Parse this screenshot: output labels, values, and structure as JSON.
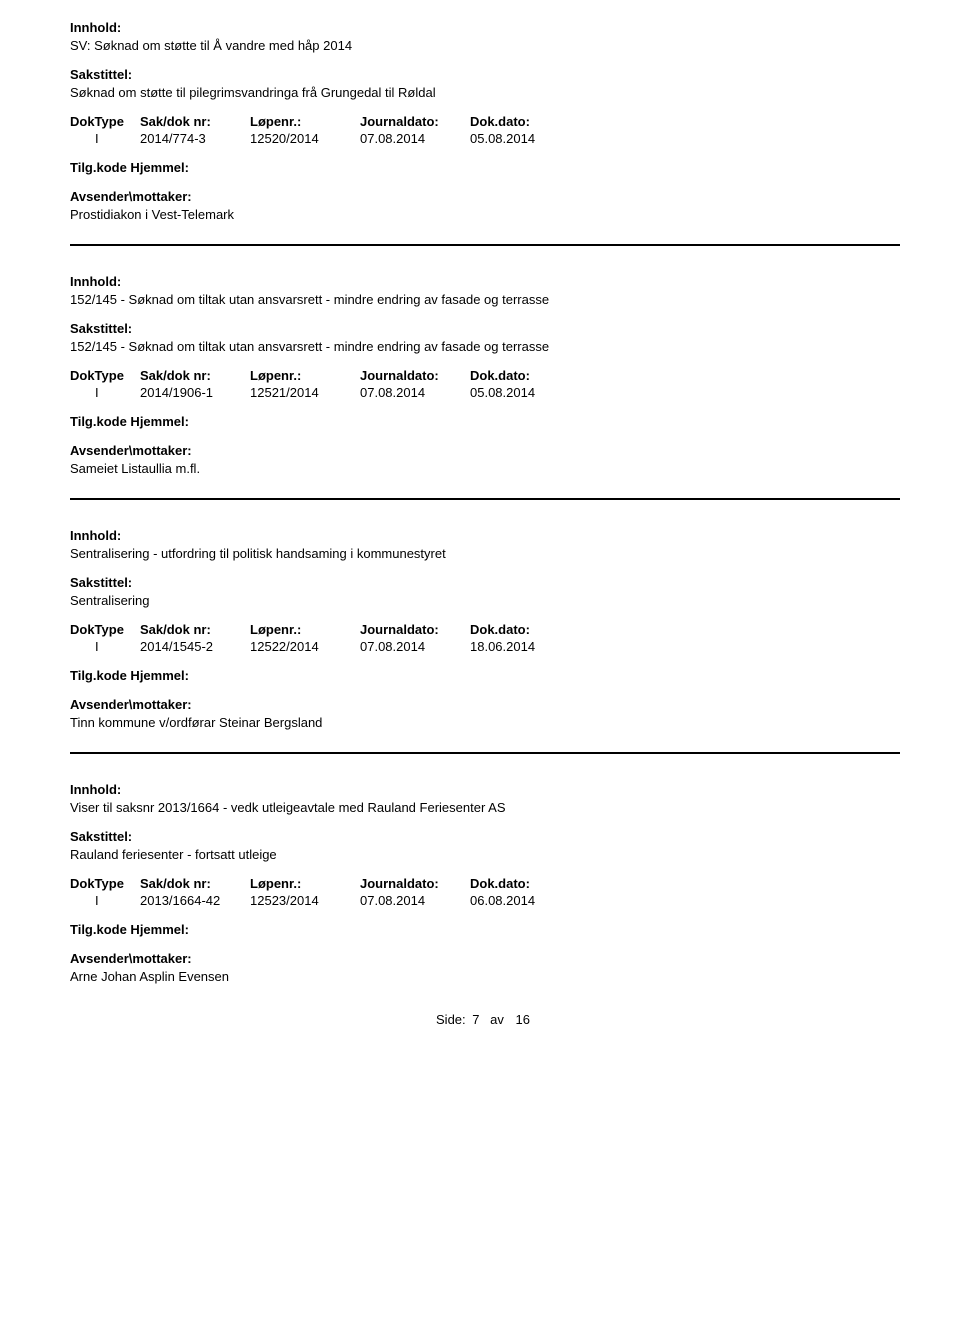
{
  "labels": {
    "innhold": "Innhold:",
    "sakstittel": "Sakstittel:",
    "doktype": "DokType",
    "saknr": "Sak/dok nr:",
    "lopenr": "Løpenr.:",
    "journaldato": "Journaldato:",
    "dokdato": "Dok.dato:",
    "tilgkode": "Tilg.kode Hjemmel:",
    "avsender": "Avsender\\mottaker:"
  },
  "records": [
    {
      "innhold": "SV: Søknad om støtte til Å vandre med håp 2014",
      "sakstittel": "Søknad om støtte til pilegrimsvandringa frå Grungedal til Røldal",
      "doktype": "I",
      "saknr": "2014/774-3",
      "lopenr": "12520/2014",
      "journaldato": "07.08.2014",
      "dokdato": "05.08.2014",
      "avsender": "Prostidiakon i Vest-Telemark"
    },
    {
      "innhold": "152/145 - Søknad om tiltak utan ansvarsrett - mindre endring av fasade og terrasse",
      "sakstittel": "152/145 - Søknad om tiltak utan ansvarsrett - mindre endring av fasade og terrasse",
      "doktype": "I",
      "saknr": "2014/1906-1",
      "lopenr": "12521/2014",
      "journaldato": "07.08.2014",
      "dokdato": "05.08.2014",
      "avsender": "Sameiet Listaullia m.fl."
    },
    {
      "innhold": "Sentralisering - utfordring til politisk handsaming i kommunestyret",
      "sakstittel": "Sentralisering",
      "doktype": "I",
      "saknr": "2014/1545-2",
      "lopenr": "12522/2014",
      "journaldato": "07.08.2014",
      "dokdato": "18.06.2014",
      "avsender": "Tinn kommune v/ordførar Steinar Bergsland"
    },
    {
      "innhold": "Viser til saksnr 2013/1664 - vedk utleigeavtale med Rauland Feriesenter AS",
      "sakstittel": "Rauland feriesenter - fortsatt utleige",
      "doktype": "I",
      "saknr": "2013/1664-42",
      "lopenr": "12523/2014",
      "journaldato": "07.08.2014",
      "dokdato": "06.08.2014",
      "avsender": "Arne Johan Asplin Evensen"
    }
  ],
  "footer": {
    "label": "Side:",
    "page": "7",
    "av": "av",
    "total": "16"
  }
}
